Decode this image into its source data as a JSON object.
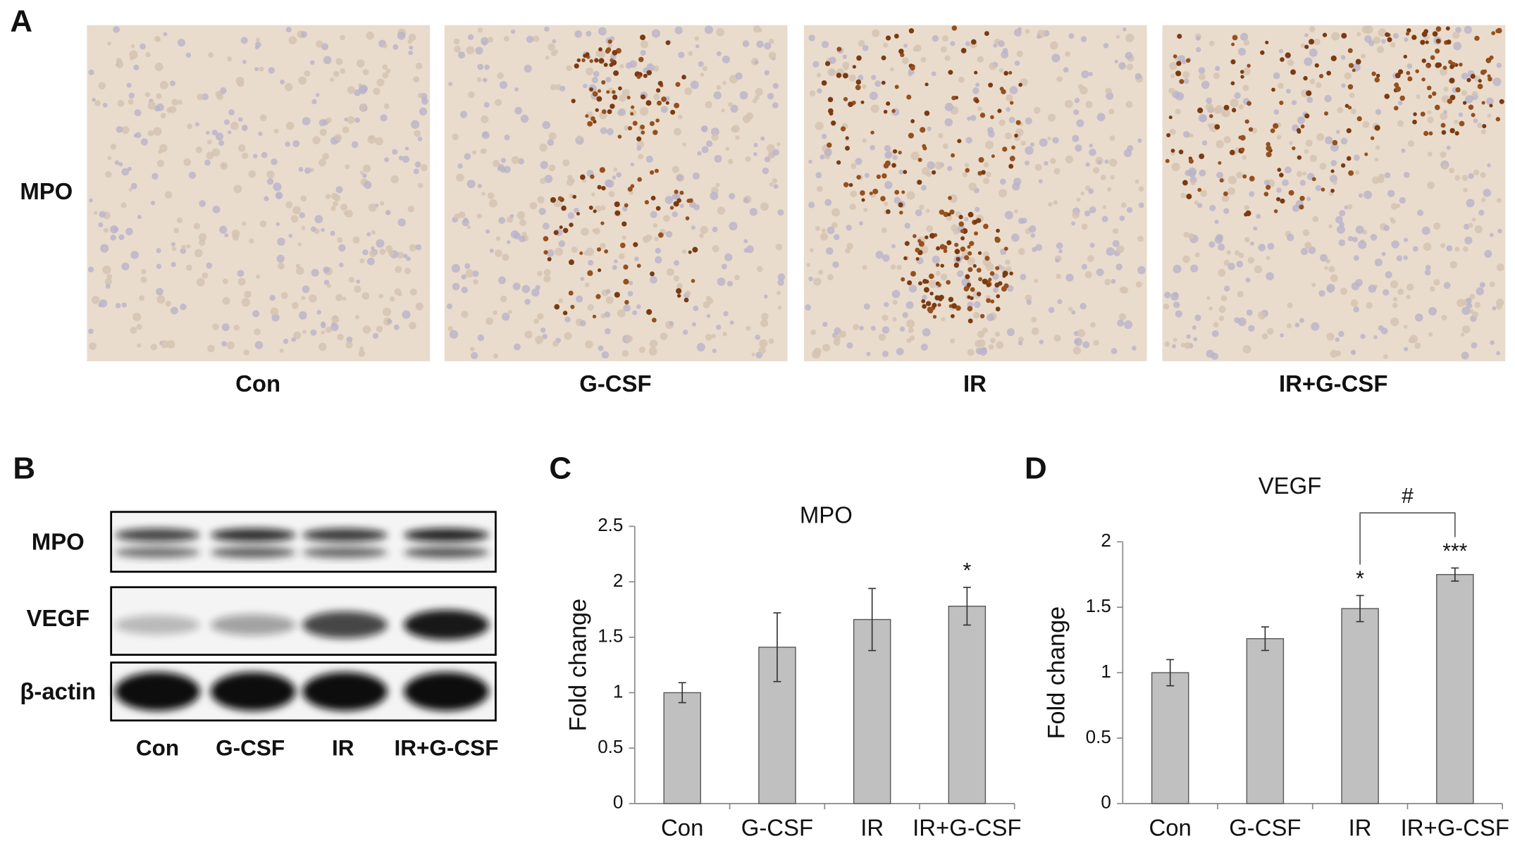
{
  "panels": {
    "a": {
      "letter": "A",
      "row_label": "MPO",
      "labels": [
        "Con",
        "G-CSF",
        "IR",
        "IR+G-CSF"
      ]
    },
    "b": {
      "letter": "B",
      "rows": [
        "MPO",
        "VEGF",
        "β-actin"
      ],
      "lanes": [
        "Con",
        "G-CSF",
        "IR",
        "IR+G-CSF"
      ]
    }
  },
  "chart_data": [
    {
      "type": "bar",
      "panel": "C",
      "title": "MPO",
      "y_label": "Fold change",
      "categories": [
        "Con",
        "G-CSF",
        "IR",
        "IR+G-CSF"
      ],
      "values": [
        1.0,
        1.41,
        1.66,
        1.78
      ],
      "errors": [
        0.09,
        0.31,
        0.28,
        0.17
      ],
      "significance": [
        null,
        null,
        null,
        "*"
      ],
      "color": "#c0c0c0",
      "ylim": [
        0,
        2.5
      ],
      "yticks": [
        0,
        0.5,
        1,
        1.5,
        2,
        2.5
      ]
    },
    {
      "type": "bar",
      "panel": "D",
      "title": "VEGF",
      "y_label": "Fold change",
      "categories": [
        "Con",
        "G-CSF",
        "IR",
        "IR+G-CSF"
      ],
      "values": [
        1.0,
        1.26,
        1.49,
        1.75
      ],
      "errors": [
        0.1,
        0.09,
        0.1,
        0.05
      ],
      "significance": [
        null,
        null,
        "*",
        "***"
      ],
      "bracket_label": "#",
      "color": "#c0c0c0",
      "ylim": [
        0,
        2
      ],
      "yticks": [
        0,
        0.5,
        1,
        1.5,
        2
      ]
    }
  ]
}
